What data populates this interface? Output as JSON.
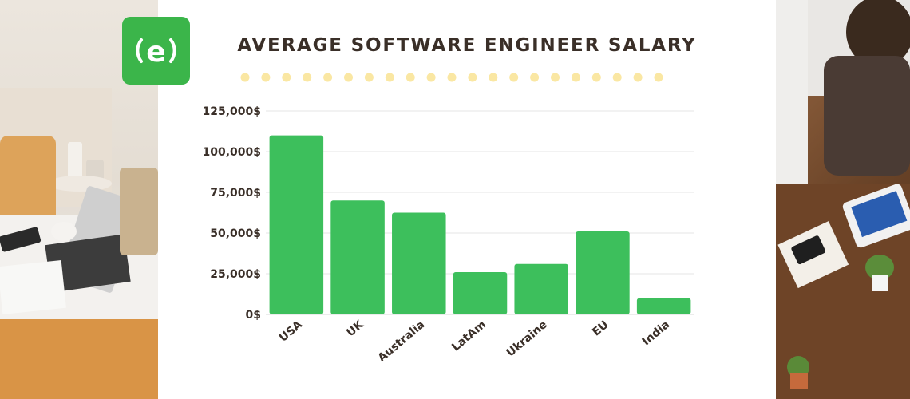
{
  "colors": {
    "bar": "#3dbf5c",
    "logo_bg": "#3bb54a",
    "title": "#3a2f28",
    "dots": "#fae7a3",
    "grid": "#e6e6e6"
  },
  "logo": {
    "icon": "e-logo-icon"
  },
  "chart_data": {
    "type": "bar",
    "title": "AVERAGE SOFTWARE ENGINEER SALARY",
    "categories": [
      "USA",
      "UK",
      "Australia",
      "LatAm",
      "Ukraine",
      "EU",
      "India"
    ],
    "values": [
      110000,
      70000,
      62500,
      26000,
      31000,
      51000,
      10000
    ],
    "ylim": [
      0,
      125000
    ],
    "yticks": [
      "0$",
      "25,000$",
      "50,000$",
      "75,000$",
      "100,000$",
      "125,000$"
    ],
    "xlabel": "",
    "ylabel": "",
    "grid": true,
    "legend": "none"
  }
}
